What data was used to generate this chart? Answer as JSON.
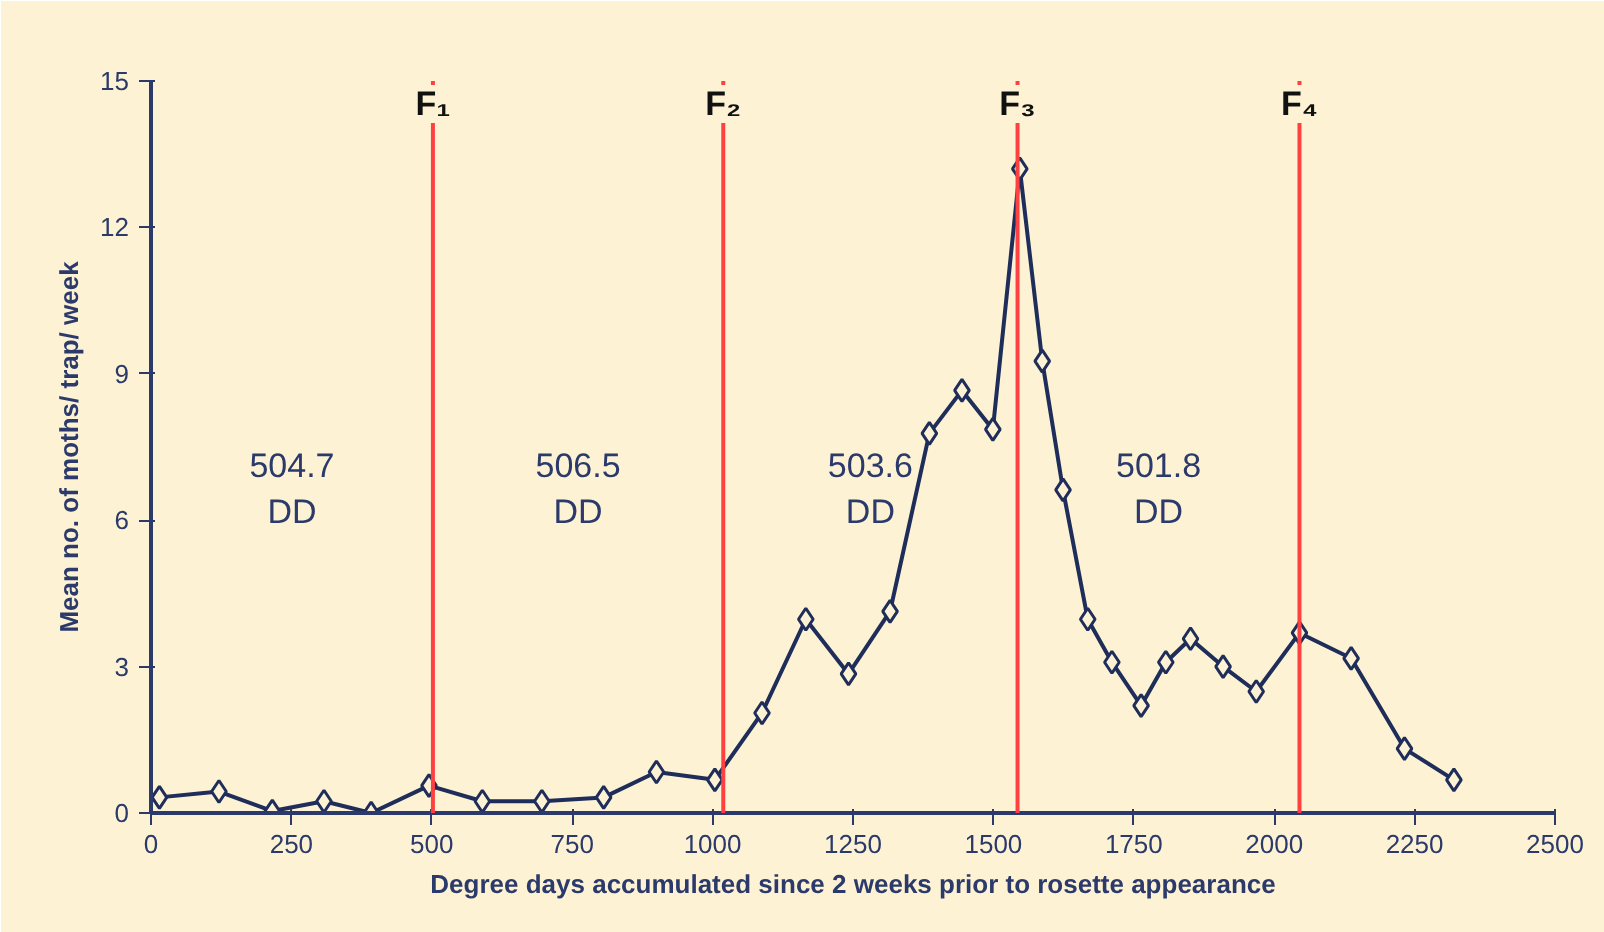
{
  "chart_data": {
    "type": "line",
    "xlabel": "Degree days accumulated since 2 weeks prior to rosette appearance",
    "ylabel": "Mean no. of moths/ trap/ week",
    "x": [
      15,
      121,
      216,
      308,
      392,
      495,
      590,
      696,
      806,
      900,
      1004,
      1088,
      1166,
      1242,
      1316,
      1386,
      1444,
      1499,
      1547,
      1587,
      1624,
      1668,
      1711,
      1763,
      1807,
      1851,
      1909,
      1968,
      2045,
      2137,
      2232,
      2320
    ],
    "series": [
      {
        "color": "#1f2d5a",
        "values": [
          0.32,
          0.44,
          0.04,
          0.24,
          0.0,
          0.56,
          0.24,
          0.24,
          0.32,
          0.84,
          0.68,
          2.05,
          3.97,
          2.85,
          4.13,
          7.78,
          8.66,
          7.86,
          13.2,
          9.26,
          6.62,
          3.97,
          3.09,
          2.2,
          3.09,
          3.57,
          3.0,
          2.49,
          3.69,
          3.17,
          1.32,
          0.68
        ]
      }
    ],
    "marker": "diamond",
    "line_style": "solid",
    "grid": false,
    "xlim": [
      0,
      2500
    ],
    "xticks": [
      0,
      250,
      500,
      750,
      1000,
      1250,
      1500,
      1750,
      2000,
      2250,
      2500
    ],
    "ylim": [
      0,
      15
    ],
    "yticks": [
      0,
      3,
      6,
      9,
      12,
      15
    ],
    "ref_lines": [
      {
        "axis": "x",
        "value": 502,
        "label": "F₁",
        "color": "#ff4040"
      },
      {
        "axis": "x",
        "value": 1019,
        "label": "F₂",
        "color": "#ff4040"
      },
      {
        "axis": "x",
        "value": 1543,
        "label": "F₃",
        "color": "#ff4040"
      },
      {
        "axis": "x",
        "value": 2045,
        "label": "F₄",
        "color": "#ff4040"
      }
    ],
    "annotations": [
      "504.7\nDD",
      "506.5\nDD",
      "503.6\nDD",
      "501.8\nDD"
    ]
  }
}
